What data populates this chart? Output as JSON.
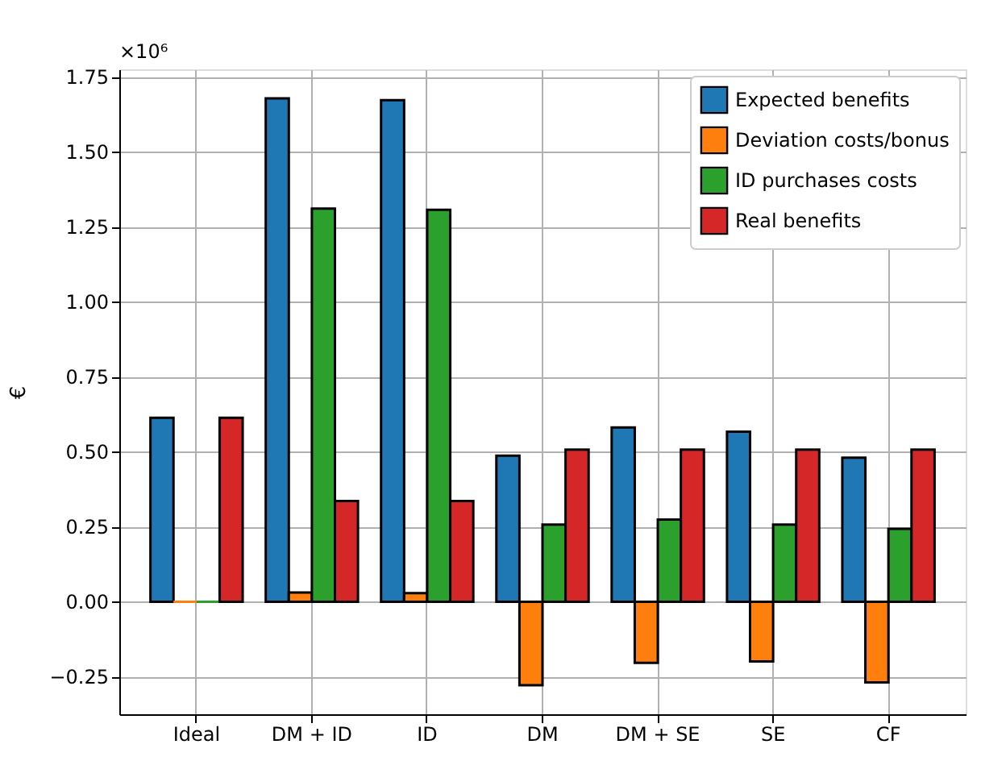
{
  "chart_data": {
    "type": "bar",
    "ylabel": "€",
    "categories": [
      "Ideal",
      "DM + ID",
      "ID",
      "DM",
      "DM + SE",
      "SE",
      "CF"
    ],
    "series": [
      {
        "name": "Expected benefits",
        "color": "#1f77b4",
        "values": [
          0.613,
          1.678,
          1.672,
          0.487,
          0.581,
          0.567,
          0.48
        ]
      },
      {
        "name": "Deviation costs/bonus",
        "color": "#ff7f0e",
        "values": [
          0,
          0.031,
          0.029,
          -0.278,
          -0.204,
          -0.199,
          -0.269
        ]
      },
      {
        "name": "ID purchases costs",
        "color": "#2ca02c",
        "values": [
          0,
          1.311,
          1.307,
          0.257,
          0.274,
          0.257,
          0.243
        ]
      },
      {
        "name": "Real benefits",
        "color": "#d62728",
        "values": [
          0.613,
          0.336,
          0.336,
          0.507,
          0.507,
          0.507,
          0.507
        ]
      }
    ],
    "ylim": [
      -0.375,
      1.775
    ],
    "yticks": [
      {
        "value": -0.25,
        "label": "−0.25"
      },
      {
        "value": 0,
        "label": "0.00"
      },
      {
        "value": 0.25,
        "label": "0.25"
      },
      {
        "value": 0.5,
        "label": "0.50"
      },
      {
        "value": 0.75,
        "label": "0.75"
      },
      {
        "value": 1,
        "label": "1.00"
      },
      {
        "value": 1.25,
        "label": "1.25"
      },
      {
        "value": 1.5,
        "label": "1.50"
      },
      {
        "value": 1.75,
        "label": "1.75"
      }
    ],
    "annotations": [
      "×10⁶"
    ],
    "grid": true,
    "legend": "top right"
  }
}
